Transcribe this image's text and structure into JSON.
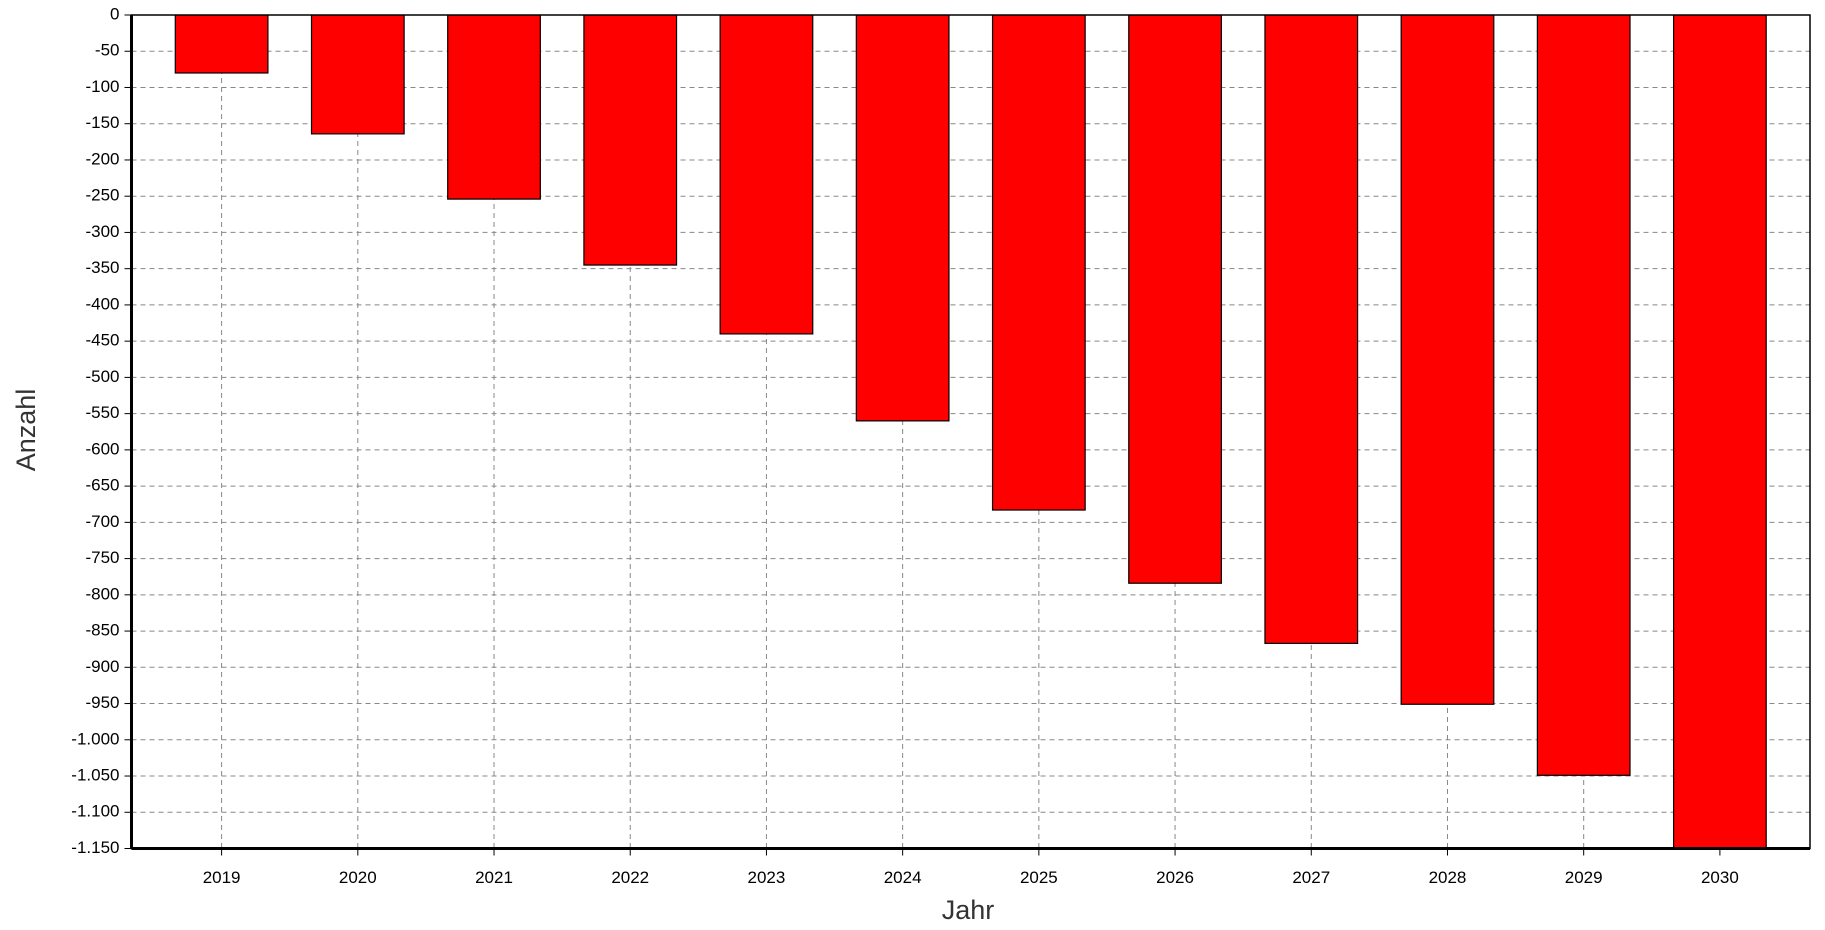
{
  "chart_data": {
    "type": "bar",
    "x_label": "Jahr",
    "y_label": "Anzahl",
    "categories": [
      "2019",
      "2020",
      "2021",
      "2022",
      "2023",
      "2024",
      "2025",
      "2026",
      "2027",
      "2028",
      "2029",
      "2030"
    ],
    "values": [
      -80,
      -164,
      -254,
      -345,
      -440,
      -560,
      -683,
      -784,
      -867,
      -951,
      -1049,
      -1150
    ],
    "color": "#ff0000",
    "ylim": [
      -1150,
      0
    ],
    "yticks": [
      0,
      -50,
      -100,
      -150,
      -200,
      -250,
      -300,
      -350,
      -400,
      -450,
      -500,
      -550,
      -600,
      -650,
      -700,
      -750,
      -800,
      -850,
      -900,
      -950,
      {
        "value": -1000,
        "label": "-1.000"
      },
      {
        "value": -1050,
        "label": "-1.050"
      },
      {
        "value": -1100,
        "label": "-1.100"
      },
      {
        "value": -1150,
        "label": "-1.150"
      }
    ],
    "grid": true
  }
}
